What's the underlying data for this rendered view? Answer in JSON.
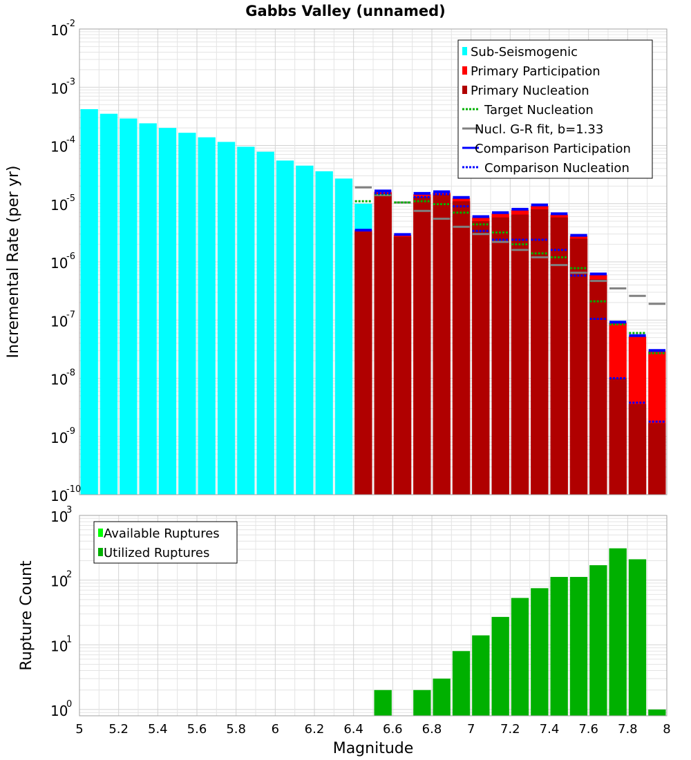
{
  "colors": {
    "sub_seismogenic": "#00ffff",
    "primary_participation": "#ff0000",
    "primary_nucleation": "#b00000",
    "target_nucleation": "#00b000",
    "gr_fit": "#808080",
    "comparison": "#0000ff",
    "nucleation_marker": "#000000",
    "utilized": "#00b000",
    "available": "#00ff00"
  },
  "chart_data": [
    {
      "type": "bar",
      "title": "Gabbs Valley (unnamed)",
      "xlabel": "",
      "ylabel": "Incremental Rate (per yr)",
      "xlim": [
        5,
        8
      ],
      "ylim": [
        1e-10,
        0.01
      ],
      "yscale": "log",
      "y_ticks": [
        {
          "base": "10",
          "exp": "-2"
        },
        {
          "base": "10",
          "exp": "-3"
        },
        {
          "base": "10",
          "exp": "-4"
        },
        {
          "base": "10",
          "exp": "-5"
        },
        {
          "base": "10",
          "exp": "-6"
        },
        {
          "base": "10",
          "exp": "-7"
        },
        {
          "base": "10",
          "exp": "-8"
        },
        {
          "base": "10",
          "exp": "-9"
        },
        {
          "base": "10",
          "exp": "-10"
        }
      ],
      "legend": [
        {
          "label": "Sub-Seismogenic",
          "style": "box",
          "color_key": "sub_seismogenic"
        },
        {
          "label": "Primary Participation",
          "style": "box",
          "color_key": "primary_participation"
        },
        {
          "label": "Primary Nucleation",
          "style": "box",
          "color_key": "primary_nucleation"
        },
        {
          "label": "Target Nucleation",
          "style": "dotted",
          "color_key": "target_nucleation"
        },
        {
          "label": "Nucl. G-R fit, b=1.33",
          "style": "solid",
          "color_key": "gr_fit"
        },
        {
          "label": "Comparison Participation",
          "style": "solid",
          "color_key": "comparison"
        },
        {
          "label": "Comparison Nucleation",
          "style": "dotted",
          "color_key": "comparison"
        }
      ],
      "bin_width": 0.1,
      "series": [
        {
          "name": "Sub-Seismogenic",
          "x": [
            5.05,
            5.15,
            5.25,
            5.35,
            5.45,
            5.55,
            5.65,
            5.75,
            5.85,
            5.95,
            6.05,
            6.15,
            6.25,
            6.35,
            6.45
          ],
          "values": [
            0.00042,
            0.00035,
            0.00029,
            0.00024,
            0.0002,
            0.000165,
            0.000138,
            0.000115,
            9.5e-05,
            7.8e-05,
            5.5e-05,
            4.5e-05,
            3.6e-05,
            2.7e-05,
            1e-05
          ]
        },
        {
          "name": "Primary Participation",
          "x": [
            6.45,
            6.55,
            6.65,
            6.75,
            6.85,
            6.95,
            7.05,
            7.15,
            7.25,
            7.35,
            7.45,
            7.55,
            7.65,
            7.75,
            7.85,
            7.95
          ],
          "values": [
            3.5e-06,
            1.6e-05,
            2.9e-06,
            1.45e-05,
            1.55e-05,
            1.25e-05,
            5.8e-06,
            6.8e-06,
            7.8e-06,
            9.2e-06,
            6.5e-06,
            2.8e-06,
            6e-07,
            9e-08,
            5.2e-08,
            2.9e-08
          ]
        },
        {
          "name": "Primary Nucleation",
          "x": [
            6.45,
            6.55,
            6.65,
            6.75,
            6.85,
            6.95,
            7.05,
            7.15,
            7.25,
            7.35,
            7.45,
            7.55,
            7.65,
            7.75,
            7.85,
            7.95
          ],
          "values": [
            3.3e-06,
            1.5e-05,
            2.7e-06,
            1.3e-05,
            1.45e-05,
            1.1e-05,
            5e-06,
            5.8e-06,
            6.5e-06,
            8e-06,
            5.8e-06,
            2.5e-06,
            5e-07,
            1e-08,
            3.6e-09,
            1.7e-09
          ]
        },
        {
          "name": "Target Nucleation",
          "x": [
            6.45,
            6.55,
            6.65,
            6.75,
            6.85,
            6.95,
            7.05,
            7.15,
            7.25,
            7.35,
            7.45,
            7.55,
            7.65,
            7.75,
            7.85,
            7.95
          ],
          "values": [
            1.1e-05,
            1.45e-05,
            1.05e-05,
            1.1e-05,
            9.8e-06,
            7e-06,
            4.4e-06,
            3.2e-06,
            2e-06,
            1.4e-06,
            1.2e-06,
            7.8e-07,
            2.1e-07,
            8.5e-08,
            6e-08,
            2.7e-08
          ]
        },
        {
          "name": "Nucl. G-R fit, b=1.33",
          "x": [
            6.45,
            6.55,
            6.65,
            6.75,
            6.85,
            6.95,
            7.05,
            7.15,
            7.25,
            7.35,
            7.45,
            7.55,
            7.65,
            7.75,
            7.85,
            7.95
          ],
          "values": [
            1.9e-05,
            1.4e-05,
            1.05e-05,
            7.5e-06,
            5.5e-06,
            4e-06,
            3e-06,
            2.2e-06,
            1.6e-06,
            1.2e-06,
            8.8e-07,
            6.5e-07,
            4.7e-07,
            3.5e-07,
            2.6e-07,
            1.9e-07
          ]
        },
        {
          "name": "Comparison Participation",
          "x": [
            6.45,
            6.55,
            6.65,
            6.75,
            6.85,
            6.95,
            7.05,
            7.15,
            7.25,
            7.35,
            7.45,
            7.55,
            7.65,
            7.75,
            7.85,
            7.95
          ],
          "values": [
            3.5e-06,
            1.65e-05,
            2.95e-06,
            1.5e-05,
            1.6e-05,
            1.28e-05,
            6e-06,
            7e-06,
            8e-06,
            9.5e-06,
            6.7e-06,
            2.85e-06,
            6.2e-07,
            9.2e-08,
            5.4e-08,
            3e-08
          ]
        },
        {
          "name": "Comparison Nucleation",
          "x": [
            6.55,
            6.75,
            6.85,
            6.95,
            7.05,
            7.15,
            7.25,
            7.35,
            7.45,
            7.55,
            7.65,
            7.75,
            7.85,
            7.95
          ],
          "values": [
            1.5e-05,
            1.3e-05,
            1.45e-05,
            9e-06,
            3.4e-06,
            2.4e-06,
            2.4e-06,
            2.4e-06,
            1.6e-06,
            5.8e-07,
            1.05e-07,
            1e-08,
            3.8e-09,
            1.8e-09
          ]
        }
      ]
    },
    {
      "type": "bar",
      "title": "",
      "xlabel": "Magnitude",
      "ylabel": "Rupture Count",
      "xlim": [
        5,
        8
      ],
      "ylim": [
        0.8,
        1000
      ],
      "yscale": "log",
      "y_ticks": [
        {
          "base": "10",
          "exp": "3"
        },
        {
          "base": "10",
          "exp": "2"
        },
        {
          "base": "10",
          "exp": "1"
        },
        {
          "base": "10",
          "exp": "0"
        }
      ],
      "x_ticks": [
        "5",
        "5.2",
        "5.4",
        "5.6",
        "5.8",
        "6",
        "6.2",
        "6.4",
        "6.6",
        "6.8",
        "7",
        "7.2",
        "7.4",
        "7.6",
        "7.8",
        "8"
      ],
      "legend": [
        {
          "label": "Available Ruptures",
          "style": "box",
          "color_key": "available"
        },
        {
          "label": "Utilized Ruptures",
          "style": "box",
          "color_key": "utilized"
        }
      ],
      "bin_width": 0.1,
      "series": [
        {
          "name": "Utilized Ruptures",
          "x": [
            6.55,
            6.75,
            6.85,
            6.95,
            7.05,
            7.15,
            7.25,
            7.35,
            7.45,
            7.55,
            7.65,
            7.75,
            7.85,
            7.95
          ],
          "values": [
            2,
            2,
            3,
            8,
            14,
            27,
            53,
            75,
            112,
            112,
            170,
            310,
            210,
            1
          ]
        }
      ]
    }
  ]
}
